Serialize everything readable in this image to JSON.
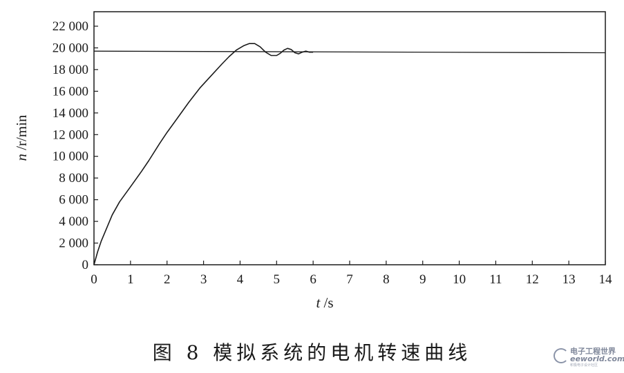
{
  "chart_data": {
    "type": "line",
    "xlabel_var": "t",
    "xlabel_unit": " /s",
    "ylabel_var": "n",
    "ylabel_unit": " /r/min",
    "xlim": [
      0,
      14
    ],
    "ylim": [
      0,
      23000
    ],
    "x_ticks": [
      0,
      1,
      2,
      3,
      4,
      5,
      6,
      7,
      8,
      9,
      10,
      11,
      12,
      13,
      14
    ],
    "x_tick_labels": [
      "0",
      "1",
      "2",
      "3",
      "4",
      "5",
      "6",
      "7",
      "8",
      "9",
      "10",
      "11",
      "12",
      "13",
      "14"
    ],
    "y_ticks": [
      0,
      2000,
      4000,
      6000,
      8000,
      10000,
      12000,
      14000,
      16000,
      18000,
      20000,
      22000
    ],
    "y_tick_labels": [
      "0",
      "2 000",
      "4 000",
      "6 000",
      "8 000",
      "10 000",
      "12 000",
      "14 000",
      "16 000",
      "18 000",
      "20 000",
      "22 000"
    ],
    "grid": false,
    "reference_line": {
      "y_start": 19700,
      "y_end": 19550
    },
    "series": [
      {
        "x": [
          0,
          0.1,
          0.2,
          0.3,
          0.5,
          0.7,
          1.0,
          1.3,
          1.5,
          1.8,
          2.0,
          2.3,
          2.6,
          2.9,
          3.2,
          3.5,
          3.7,
          3.9,
          4.1,
          4.25,
          4.4,
          4.55,
          4.7,
          4.85,
          5.0,
          5.1,
          5.2,
          5.3,
          5.4,
          5.5,
          5.6,
          5.7,
          5.8,
          5.9,
          6.0
        ],
        "y": [
          0,
          1200,
          2200,
          3000,
          4600,
          5800,
          7200,
          8600,
          9600,
          11200,
          12200,
          13600,
          15000,
          16300,
          17400,
          18500,
          19200,
          19800,
          20200,
          20400,
          20400,
          20100,
          19600,
          19300,
          19300,
          19500,
          19800,
          19950,
          19850,
          19550,
          19450,
          19600,
          19700,
          19600,
          19600
        ]
      }
    ]
  },
  "caption": "图 8  模拟系统的电机转速曲线",
  "watermark": {
    "line1": "电子工程世界",
    "line2": "eeworld.com.cn",
    "line3": "积极电子设计社区"
  }
}
